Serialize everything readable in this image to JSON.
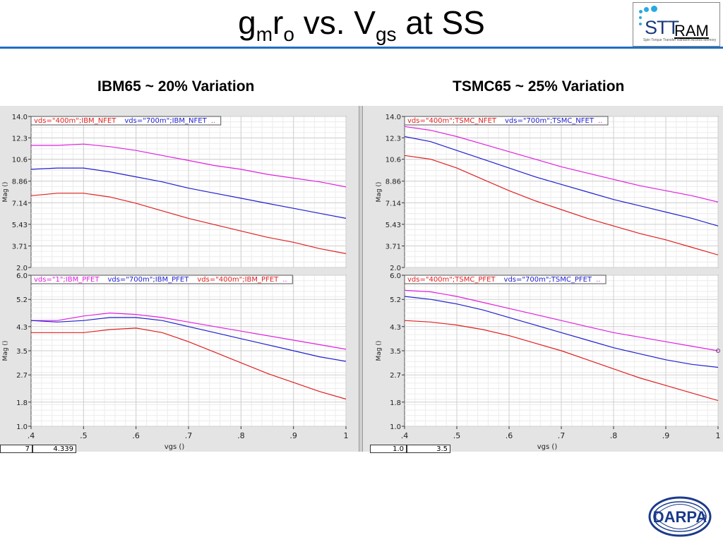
{
  "slide": {
    "title_main1": "g",
    "title_sub1": "m",
    "title_main2": "r",
    "title_sub2": "o",
    "title_main3": " vs. V",
    "title_sub3": "gs",
    "title_main4": " at SS",
    "logo_stt": "STT",
    "logo_ram": "RAM",
    "logo_tagline": "Spin Torque Transfer Random Access Memory",
    "darpa_logo": "DARPA",
    "accent_color": "#1f6fc2"
  },
  "left_heading": "IBM65 ~ 20% Variation",
  "right_heading": "TSMC65 ~ 25% Variation",
  "readouts": {
    "left_a": "7",
    "left_b": "4.339",
    "right_a": "1.0",
    "right_b": "3.5"
  },
  "chart_data": [
    {
      "type": "line",
      "panel": "IBM65 NFET",
      "ylabel": "Mag ()",
      "xlabel": "",
      "xlim": [
        0.4,
        1.0
      ],
      "ylim": [
        2.0,
        14.0
      ],
      "yticks": [
        "14.0",
        "12.3",
        "10.6",
        "8.86",
        "7.14",
        "5.43",
        "3.71",
        "2.0"
      ],
      "ytick_values": [
        14.0,
        12.3,
        10.6,
        8.86,
        7.14,
        5.43,
        3.71,
        2.0
      ],
      "xticks": [],
      "grid": true,
      "legend_position": "top",
      "series": [
        {
          "name": "vds=\"400m\";IBM_NFET",
          "color": "#e02020",
          "x": [
            0.4,
            0.45,
            0.5,
            0.55,
            0.6,
            0.65,
            0.7,
            0.75,
            0.8,
            0.85,
            0.9,
            0.95,
            1.0
          ],
          "y": [
            7.7,
            7.9,
            7.9,
            7.6,
            7.1,
            6.5,
            5.9,
            5.4,
            4.9,
            4.4,
            4.0,
            3.5,
            3.1
          ]
        },
        {
          "name": "vds=\"700m\";IBM_NFET",
          "color": "#2020d0",
          "x": [
            0.4,
            0.45,
            0.5,
            0.55,
            0.6,
            0.65,
            0.7,
            0.75,
            0.8,
            0.85,
            0.9,
            0.95,
            1.0
          ],
          "y": [
            9.8,
            9.9,
            9.9,
            9.6,
            9.2,
            8.8,
            8.3,
            7.9,
            7.5,
            7.1,
            6.7,
            6.3,
            5.9
          ]
        },
        {
          "name": "",
          "color": "#e020e0",
          "x": [
            0.4,
            0.45,
            0.5,
            0.55,
            0.6,
            0.65,
            0.7,
            0.75,
            0.8,
            0.85,
            0.9,
            0.95,
            1.0
          ],
          "y": [
            11.7,
            11.7,
            11.8,
            11.6,
            11.3,
            10.9,
            10.5,
            10.1,
            9.8,
            9.4,
            9.1,
            8.8,
            8.4
          ]
        }
      ]
    },
    {
      "type": "line",
      "panel": "IBM65 PFET",
      "ylabel": "Mag ()",
      "xlabel": "vgs ()",
      "xlim": [
        0.4,
        1.0
      ],
      "ylim": [
        1.0,
        6.0
      ],
      "yticks": [
        "6.0",
        "5.2",
        "4.3",
        "3.5",
        "2.7",
        "1.8",
        "1.0"
      ],
      "ytick_values": [
        6.0,
        5.2,
        4.3,
        3.5,
        2.7,
        1.8,
        1.0
      ],
      "xticks": [
        ".4",
        ".5",
        ".6",
        ".7",
        ".8",
        ".9",
        "1"
      ],
      "xtick_values": [
        0.4,
        0.5,
        0.6,
        0.7,
        0.8,
        0.9,
        1.0
      ],
      "grid": true,
      "legend_position": "top",
      "series": [
        {
          "name": "vds=\"1\";IBM_PFET",
          "color": "#e020e0",
          "x": [
            0.4,
            0.45,
            0.5,
            0.55,
            0.6,
            0.65,
            0.7,
            0.75,
            0.8,
            0.85,
            0.9,
            0.95,
            1.0
          ],
          "y": [
            4.5,
            4.5,
            4.65,
            4.75,
            4.7,
            4.6,
            4.45,
            4.3,
            4.15,
            4.0,
            3.85,
            3.7,
            3.55
          ]
        },
        {
          "name": "vds=\"700m\";IBM_PFET",
          "color": "#2020d0",
          "x": [
            0.4,
            0.45,
            0.5,
            0.55,
            0.6,
            0.65,
            0.7,
            0.75,
            0.8,
            0.85,
            0.9,
            0.95,
            1.0
          ],
          "y": [
            4.5,
            4.45,
            4.5,
            4.6,
            4.6,
            4.5,
            4.3,
            4.1,
            3.9,
            3.7,
            3.5,
            3.3,
            3.15
          ]
        },
        {
          "name": "vds=\"400m\";IBM_PFET",
          "color": "#e02020",
          "x": [
            0.4,
            0.45,
            0.5,
            0.55,
            0.6,
            0.65,
            0.7,
            0.75,
            0.8,
            0.85,
            0.9,
            0.95,
            1.0
          ],
          "y": [
            4.1,
            4.1,
            4.1,
            4.2,
            4.25,
            4.1,
            3.8,
            3.45,
            3.1,
            2.75,
            2.45,
            2.15,
            1.9
          ]
        }
      ]
    },
    {
      "type": "line",
      "panel": "TSMC65 NFET",
      "ylabel": "Mag ()",
      "xlabel": "",
      "xlim": [
        0.4,
        1.0
      ],
      "ylim": [
        2.0,
        14.0
      ],
      "yticks": [
        "14.0",
        "12.3",
        "10.6",
        "8.86",
        "7.14",
        "5.43",
        "3.71",
        "2.0"
      ],
      "ytick_values": [
        14.0,
        12.3,
        10.6,
        8.86,
        7.14,
        5.43,
        3.71,
        2.0
      ],
      "xticks": [],
      "grid": true,
      "legend_position": "top",
      "series": [
        {
          "name": "vds=\"400m\";TSMC_NFET",
          "color": "#e02020",
          "x": [
            0.4,
            0.45,
            0.5,
            0.55,
            0.6,
            0.65,
            0.7,
            0.75,
            0.8,
            0.85,
            0.9,
            0.95,
            1.0
          ],
          "y": [
            10.9,
            10.6,
            9.9,
            9.0,
            8.1,
            7.3,
            6.6,
            5.9,
            5.3,
            4.7,
            4.2,
            3.6,
            3.0
          ]
        },
        {
          "name": "vds=\"700m\";TSMC_NFET",
          "color": "#2020d0",
          "x": [
            0.4,
            0.45,
            0.5,
            0.55,
            0.6,
            0.65,
            0.7,
            0.75,
            0.8,
            0.85,
            0.9,
            0.95,
            1.0
          ],
          "y": [
            12.4,
            12.0,
            11.3,
            10.6,
            9.9,
            9.2,
            8.6,
            8.0,
            7.4,
            6.9,
            6.4,
            5.9,
            5.3
          ]
        },
        {
          "name": "",
          "color": "#e020e0",
          "x": [
            0.4,
            0.45,
            0.5,
            0.55,
            0.6,
            0.65,
            0.7,
            0.75,
            0.8,
            0.85,
            0.9,
            0.95,
            1.0
          ],
          "y": [
            13.2,
            12.9,
            12.4,
            11.8,
            11.2,
            10.6,
            10.0,
            9.5,
            9.0,
            8.5,
            8.1,
            7.7,
            7.2
          ]
        }
      ]
    },
    {
      "type": "line",
      "panel": "TSMC65 PFET",
      "ylabel": "Mag ()",
      "xlabel": "vgs ()",
      "xlim": [
        0.4,
        1.0
      ],
      "ylim": [
        1.0,
        6.0
      ],
      "yticks": [
        "6.0",
        "5.2",
        "4.3",
        "3.5",
        "2.7",
        "1.8",
        "1.0"
      ],
      "ytick_values": [
        6.0,
        5.2,
        4.3,
        3.5,
        2.7,
        1.8,
        1.0
      ],
      "xticks": [
        ".4",
        ".5",
        ".6",
        ".7",
        ".8",
        ".9",
        "1"
      ],
      "xtick_values": [
        0.4,
        0.5,
        0.6,
        0.7,
        0.8,
        0.9,
        1.0
      ],
      "grid": true,
      "legend_position": "top",
      "series": [
        {
          "name": "vds=\"400m\";TSMC_PFET",
          "color": "#e02020",
          "x": [
            0.4,
            0.45,
            0.5,
            0.55,
            0.6,
            0.65,
            0.7,
            0.75,
            0.8,
            0.85,
            0.9,
            0.95,
            1.0
          ],
          "y": [
            4.5,
            4.45,
            4.35,
            4.2,
            4.0,
            3.75,
            3.5,
            3.2,
            2.9,
            2.6,
            2.35,
            2.1,
            1.85
          ]
        },
        {
          "name": "vds=\"700m\";TSMC_PFET",
          "color": "#2020d0",
          "x": [
            0.4,
            0.45,
            0.5,
            0.55,
            0.6,
            0.65,
            0.7,
            0.75,
            0.8,
            0.85,
            0.9,
            0.95,
            1.0
          ],
          "y": [
            5.3,
            5.2,
            5.05,
            4.85,
            4.6,
            4.35,
            4.1,
            3.85,
            3.6,
            3.4,
            3.2,
            3.05,
            2.95
          ]
        },
        {
          "name": "",
          "color": "#e020e0",
          "x": [
            0.4,
            0.45,
            0.5,
            0.55,
            0.6,
            0.65,
            0.7,
            0.75,
            0.8,
            0.85,
            0.9,
            0.95,
            1.0
          ],
          "y": [
            5.5,
            5.45,
            5.3,
            5.1,
            4.9,
            4.7,
            4.5,
            4.3,
            4.1,
            3.95,
            3.8,
            3.65,
            3.5
          ]
        }
      ]
    }
  ]
}
